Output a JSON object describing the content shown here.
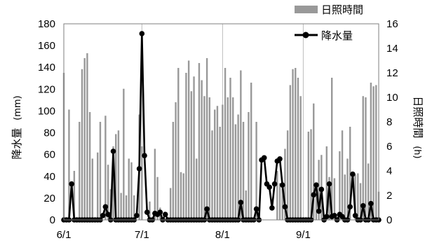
{
  "chart_data": {
    "type": "bar+line",
    "x_tick_labels": [
      "6/1",
      "7/1",
      "8/1",
      "9/1"
    ],
    "x_tick_days": [
      1,
      31,
      62,
      93
    ],
    "left_axis": {
      "label": "降水量 (mm)",
      "label_text": "降水量",
      "label_unit": "(mm)",
      "ylim": [
        0,
        180
      ],
      "ticks": [
        0,
        20,
        40,
        60,
        80,
        100,
        120,
        140,
        160,
        180
      ]
    },
    "right_axis": {
      "label": "日照時間 (h)",
      "label_text": "日照時間",
      "label_unit": "(h)",
      "ylim": [
        0,
        16
      ],
      "ticks": [
        0,
        2,
        4,
        6,
        8,
        10,
        12,
        14,
        16
      ]
    },
    "grid": "vertical lines at month starts",
    "legend_placement": "top-right",
    "series": [
      {
        "name": "日照時間",
        "type": "bar",
        "axis": "right",
        "color": "#999999",
        "days": [
          1,
          2,
          3,
          4,
          5,
          6,
          7,
          8,
          9,
          10,
          11,
          12,
          13,
          14,
          15,
          16,
          17,
          18,
          19,
          20,
          21,
          22,
          23,
          24,
          25,
          26,
          27,
          28,
          29,
          30,
          31,
          32,
          33,
          34,
          35,
          36,
          37,
          38,
          39,
          40,
          41,
          42,
          43,
          44,
          45,
          46,
          47,
          48,
          49,
          50,
          51,
          52,
          53,
          54,
          55,
          56,
          57,
          58,
          59,
          60,
          61,
          62,
          63,
          64,
          65,
          66,
          67,
          68,
          69,
          70,
          71,
          72,
          73,
          74,
          75,
          76,
          77,
          78,
          79,
          80,
          81,
          82,
          83,
          84,
          85,
          86,
          87,
          88,
          89,
          90,
          91,
          92,
          93,
          94,
          95,
          96,
          97,
          98,
          99,
          100,
          101,
          102,
          103,
          104,
          105,
          106,
          107,
          108,
          109,
          110,
          111,
          112,
          113,
          114,
          115,
          116,
          117,
          118,
          119,
          120,
          121,
          122
        ],
        "values": [
          12,
          0,
          9,
          0,
          4,
          0,
          8,
          12.3,
          13.2,
          13.6,
          8.8,
          5,
          0,
          5.5,
          8,
          0,
          8.5,
          4.5,
          2.5,
          6,
          7,
          7.3,
          2.2,
          10.7,
          2,
          5,
          4.7,
          2,
          0,
          8.6,
          6,
          0,
          0,
          1.5,
          0,
          5.8,
          3.5,
          1,
          0,
          0,
          0,
          2.6,
          8,
          9.6,
          12.4,
          3.9,
          3.8,
          12,
          13,
          10.5,
          11.7,
          5,
          12.8,
          11.4,
          10.1,
          13.2,
          10,
          7.3,
          9,
          9.3,
          7.6,
          9.4,
          12.4,
          10,
          11.6,
          10,
          7.8,
          8.6,
          12.2,
          8,
          2.4,
          8.8,
          11.2,
          0,
          8,
          0,
          0,
          0,
          0,
          0,
          0,
          0,
          4,
          3,
          3,
          5.8,
          7.3,
          11,
          12.3,
          12.4,
          11.6,
          10.1,
          0,
          0,
          7.2,
          7.4,
          9.5,
          3,
          4.9,
          5.3,
          0,
          6,
          3.5,
          11.6,
          3.4,
          0,
          5.6,
          7.3,
          3.7,
          5,
          7.6,
          0,
          3.7,
          3.8,
          3,
          10.1,
          10,
          4.6,
          11.2,
          10.9,
          11,
          2.3
        ]
      },
      {
        "name": "降水量",
        "type": "line",
        "axis": "left",
        "color": "#000000",
        "days": [
          1,
          2,
          3,
          4,
          5,
          6,
          7,
          8,
          9,
          10,
          11,
          12,
          13,
          14,
          15,
          16,
          17,
          18,
          19,
          20,
          21,
          22,
          23,
          24,
          25,
          26,
          27,
          28,
          29,
          30,
          31,
          32,
          33,
          34,
          35,
          36,
          37,
          38,
          39,
          40,
          41,
          42,
          43,
          44,
          45,
          46,
          47,
          48,
          49,
          50,
          51,
          52,
          53,
          54,
          55,
          56,
          57,
          58,
          59,
          60,
          61,
          62,
          63,
          64,
          65,
          66,
          67,
          68,
          69,
          70,
          71,
          72,
          73,
          74,
          75,
          76,
          77,
          78,
          79,
          80,
          81,
          82,
          83,
          84,
          85,
          86,
          87,
          88,
          89,
          90,
          91,
          92,
          93,
          94,
          95,
          96,
          97,
          98,
          99,
          100,
          101,
          102,
          103,
          104,
          105,
          106,
          107,
          108,
          109,
          110,
          111,
          112,
          113,
          114,
          115,
          116,
          117,
          118,
          119,
          120,
          121,
          122
        ],
        "values": [
          0,
          0,
          0,
          33,
          0,
          0,
          0,
          0,
          0,
          0,
          0,
          0,
          0,
          0,
          0,
          4,
          12,
          5,
          0,
          63,
          0,
          0,
          0,
          0,
          0,
          0,
          0,
          0,
          4,
          47,
          171,
          59,
          7,
          0,
          0,
          6,
          5,
          7,
          0,
          5,
          0,
          0,
          0,
          0,
          0,
          0,
          0,
          0,
          0,
          0,
          0,
          0,
          0,
          0,
          0,
          10,
          0,
          0,
          0,
          0,
          0,
          0,
          0,
          0,
          0,
          0,
          0,
          0,
          16,
          0,
          0,
          0,
          0,
          0,
          10,
          0,
          55,
          57,
          33,
          30,
          11,
          33,
          54,
          56,
          32,
          12,
          0,
          0,
          0,
          0,
          0,
          0,
          0,
          0,
          0,
          0,
          23,
          32,
          8,
          28,
          0,
          3,
          33,
          3,
          4,
          0,
          5,
          3,
          0,
          0,
          12,
          42,
          4,
          0,
          0,
          13,
          0,
          0,
          15,
          0,
          0,
          0
        ]
      }
    ]
  }
}
